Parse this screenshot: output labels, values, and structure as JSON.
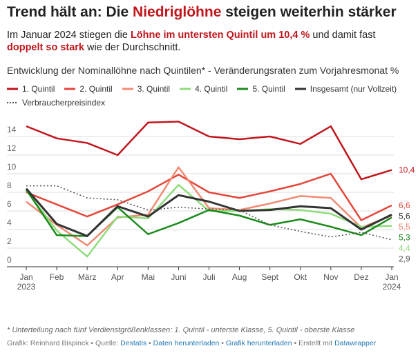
{
  "chart_data": {
    "type": "line",
    "title": [
      {
        "text": "Trend hält an: Die ",
        "emphasis": false
      },
      {
        "text": "Niedriglöhne",
        "emphasis": true
      },
      {
        "text": " steigen weiterhin stärker",
        "emphasis": false
      }
    ],
    "subtitle": [
      {
        "text": "Im Januar 2024 stiegen die ",
        "emphasis": false
      },
      {
        "text": "Löhne im untersten Quintil um 10,4 %",
        "emphasis": true
      },
      {
        "text": " und damit fast ",
        "emphasis": false
      },
      {
        "text": "doppelt so stark",
        "emphasis": true
      },
      {
        "text": " wie der Durchschnitt.",
        "emphasis": false
      }
    ],
    "description": "Entwicklung der Nominallöhne nach Quintilen* - Veränderungsraten zum Vorjahresmonat %",
    "categories": [
      "Jan 2023",
      "Feb",
      "März",
      "Apr",
      "Mai",
      "Juni",
      "Juli",
      "Aug",
      "Sept",
      "Okt",
      "Nov",
      "Dez",
      "Jan 2024"
    ],
    "series": [
      {
        "name": "1. Quintil",
        "color": "#c0161c",
        "dash": "solid",
        "values": [
          15.1,
          13.8,
          13.3,
          12.0,
          15.5,
          15.6,
          14.0,
          13.7,
          14.0,
          13.2,
          15.1,
          9.4,
          10.4
        ],
        "value_labels": [
          null,
          null,
          null,
          null,
          null,
          null,
          null,
          null,
          null,
          null,
          null,
          null,
          "10,4"
        ]
      },
      {
        "name": "2. Quintil",
        "color": "#e5463a",
        "dash": "solid",
        "values": [
          8.0,
          6.7,
          5.4,
          6.7,
          8.1,
          9.9,
          8.0,
          7.4,
          8.1,
          8.9,
          10.0,
          5.0,
          6.6
        ],
        "value_labels": [
          null,
          null,
          null,
          null,
          null,
          null,
          null,
          null,
          null,
          null,
          null,
          null,
          "6,6"
        ]
      },
      {
        "name": "3. Quintil",
        "color": "#f08a72",
        "dash": "solid",
        "values": [
          7.0,
          4.5,
          2.3,
          5.3,
          5.6,
          10.7,
          6.3,
          6.1,
          6.8,
          7.6,
          7.4,
          4.2,
          5.5
        ],
        "value_labels": [
          null,
          null,
          null,
          null,
          null,
          null,
          null,
          null,
          null,
          null,
          null,
          null,
          "5,5"
        ]
      },
      {
        "name": "4. Quintil",
        "color": "#8edc7a",
        "dash": "solid",
        "values": [
          8.2,
          3.9,
          1.1,
          5.4,
          5.2,
          8.8,
          6.0,
          6.0,
          6.2,
          6.1,
          5.7,
          4.3,
          4.4
        ],
        "value_labels": [
          null,
          null,
          null,
          null,
          null,
          null,
          null,
          null,
          null,
          null,
          null,
          null,
          "4,4"
        ]
      },
      {
        "name": "5. Quintil",
        "color": "#1a8a1a",
        "dash": "solid",
        "values": [
          8.3,
          3.4,
          3.3,
          6.4,
          3.5,
          4.7,
          6.1,
          5.5,
          4.5,
          5.1,
          4.3,
          3.4,
          5.3
        ],
        "value_labels": [
          null,
          null,
          null,
          null,
          null,
          null,
          null,
          null,
          null,
          null,
          null,
          null,
          "5,3"
        ]
      },
      {
        "name": "Insgesamt (nur Vollzeit)",
        "color": "#333333",
        "dash": "solid",
        "width": 3,
        "values": [
          8.4,
          4.6,
          3.3,
          6.5,
          5.4,
          7.7,
          7.0,
          6.0,
          6.1,
          6.5,
          6.3,
          4.0,
          5.6
        ],
        "value_labels": [
          null,
          null,
          null,
          null,
          null,
          null,
          null,
          null,
          null,
          null,
          null,
          null,
          "5,6"
        ]
      },
      {
        "name": "Verbraucherpreisindex",
        "color": "#555555",
        "dash": "dotted",
        "values": [
          8.7,
          8.7,
          7.4,
          7.2,
          6.1,
          6.4,
          6.2,
          6.1,
          4.5,
          3.8,
          3.2,
          3.7,
          2.9
        ],
        "value_labels": [
          null,
          null,
          null,
          null,
          null,
          null,
          null,
          null,
          null,
          null,
          null,
          null,
          "2,9"
        ]
      }
    ],
    "ylim": [
      0,
      16
    ],
    "yticks": [
      0,
      2,
      4,
      6,
      8,
      10,
      12,
      14
    ],
    "grid": true,
    "notes": "* Unterteilung nach fünf Verdienstgrößenklassen: 1. Quintil - unterste Klasse, 5. Quintil - oberste Klasse",
    "source": [
      "Grafik: Reinhard Bispinck • Quelle: ",
      {
        "link": "Destatis"
      },
      " • ",
      {
        "link": "Daten herunterladen"
      },
      " • ",
      {
        "link": "Grafik herunterladen"
      },
      " • Erstellt mit ",
      {
        "link": "Datawrapper"
      }
    ]
  }
}
